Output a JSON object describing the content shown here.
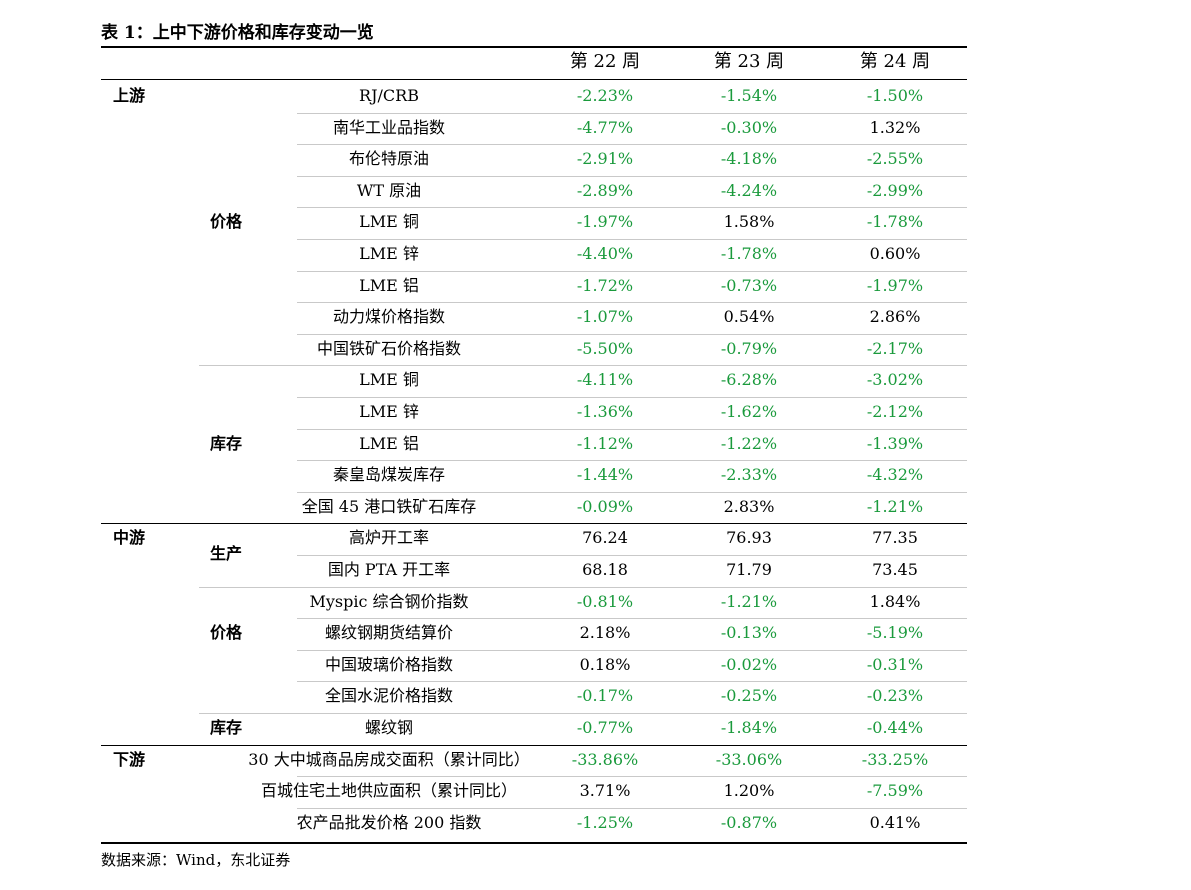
{
  "title": "表 1：上中下游价格和库存变动一览",
  "headers": [
    "第 22 周",
    "第 23 周",
    "第 24 周"
  ],
  "colors": {
    "negative": "#1a9a3c",
    "positive": "#000000"
  },
  "rows": [
    {
      "level1": "上游",
      "level2": "",
      "item": "RJ/CRB",
      "values": [
        "-2.23%",
        "-1.54%",
        "-1.50%"
      ]
    },
    {
      "level1": "",
      "level2": "",
      "item": "南华工业品指数",
      "values": [
        "-4.77%",
        "-0.30%",
        "1.32%"
      ]
    },
    {
      "level1": "",
      "level2": "",
      "item": "布伦特原油",
      "values": [
        "-2.91%",
        "-4.18%",
        "-2.55%"
      ]
    },
    {
      "level1": "",
      "level2": "",
      "item": "WT 原油",
      "values": [
        "-2.89%",
        "-4.24%",
        "-2.99%"
      ]
    },
    {
      "level1": "",
      "level2": "价格",
      "item": "LME 铜",
      "values": [
        "-1.97%",
        "1.58%",
        "-1.78%"
      ]
    },
    {
      "level1": "",
      "level2": "",
      "item": "LME 锌",
      "values": [
        "-4.40%",
        "-1.78%",
        "0.60%"
      ]
    },
    {
      "level1": "",
      "level2": "",
      "item": "LME 铝",
      "values": [
        "-1.72%",
        "-0.73%",
        "-1.97%"
      ]
    },
    {
      "level1": "",
      "level2": "",
      "item": "动力煤价格指数",
      "values": [
        "-1.07%",
        "0.54%",
        "2.86%"
      ]
    },
    {
      "level1": "",
      "level2": "",
      "item": "中国铁矿石价格指数",
      "values": [
        "-5.50%",
        "-0.79%",
        "-2.17%"
      ]
    },
    {
      "level1": "",
      "level2": "",
      "item": "LME 铜",
      "values": [
        "-4.11%",
        "-6.28%",
        "-3.02%"
      ]
    },
    {
      "level1": "",
      "level2": "",
      "item": "LME 锌",
      "values": [
        "-1.36%",
        "-1.62%",
        "-2.12%"
      ]
    },
    {
      "level1": "",
      "level2": "库存",
      "item": "LME 铝",
      "values": [
        "-1.12%",
        "-1.22%",
        "-1.39%"
      ]
    },
    {
      "level1": "",
      "level2": "",
      "item": "秦皇岛煤炭库存",
      "values": [
        "-1.44%",
        "-2.33%",
        "-4.32%"
      ]
    },
    {
      "level1": "",
      "level2": "",
      "item": "全国 45 港口铁矿石库存",
      "values": [
        "-0.09%",
        "2.83%",
        "-1.21%"
      ]
    },
    {
      "level1": "中游",
      "level2": "",
      "item": "高炉开工率",
      "values": [
        "76.24",
        "76.93",
        "77.35"
      ]
    },
    {
      "level1": "",
      "level2": "生产",
      "item": "国内 PTA 开工率",
      "values": [
        "68.18",
        "71.79",
        "73.45"
      ]
    },
    {
      "level1": "",
      "level2": "",
      "item": "Myspic 综合钢价指数",
      "values": [
        "-0.81%",
        "-1.21%",
        "1.84%"
      ]
    },
    {
      "level1": "",
      "level2": "价格",
      "item": "螺纹钢期货结算价",
      "values": [
        "2.18%",
        "-0.13%",
        "-5.19%"
      ]
    },
    {
      "level1": "",
      "level2": "",
      "item": "中国玻璃价格指数",
      "values": [
        "0.18%",
        "-0.02%",
        "-0.31%"
      ]
    },
    {
      "level1": "",
      "level2": "",
      "item": "全国水泥价格指数",
      "values": [
        "-0.17%",
        "-0.25%",
        "-0.23%"
      ]
    },
    {
      "level1": "",
      "level2": "库存",
      "item": "螺纹钢",
      "values": [
        "-0.77%",
        "-1.84%",
        "-0.44%"
      ]
    },
    {
      "level1": "下游",
      "level2": "",
      "item": "30 大中城商品房成交面积（累计同比）",
      "values": [
        "-33.86%",
        "-33.06%",
        "-33.25%"
      ]
    },
    {
      "level1": "",
      "level2": "",
      "item": "百城住宅土地供应面积（累计同比）",
      "values": [
        "3.71%",
        "1.20%",
        "-7.59%"
      ]
    },
    {
      "level1": "",
      "level2": "",
      "item": "农产品批发价格 200 指数",
      "values": [
        "-1.25%",
        "-0.87%",
        "0.41%"
      ]
    }
  ],
  "source": "数据来源：Wind，东北证券"
}
